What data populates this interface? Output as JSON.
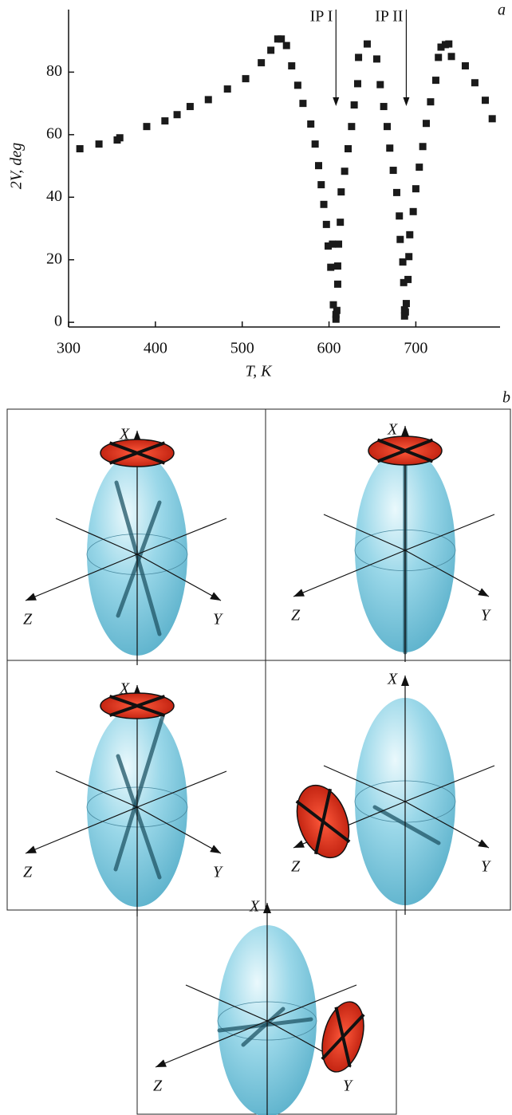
{
  "chart_data": {
    "type": "scatter",
    "panel_label": "a",
    "x_label": "T, K",
    "y_label": "2V, deg",
    "x": [
      313,
      335,
      356,
      359,
      390,
      411,
      425,
      440,
      461,
      483,
      504,
      522,
      533,
      541,
      545,
      551,
      557,
      564,
      570,
      579,
      584,
      588,
      591,
      594,
      597,
      599,
      602,
      604,
      605,
      608,
      608,
      609,
      610,
      610,
      611,
      613,
      614,
      618,
      622,
      626,
      629,
      633,
      634,
      644,
      655,
      659,
      663,
      667,
      670,
      674,
      678,
      681,
      682,
      685,
      686,
      687,
      687,
      688,
      689,
      691,
      692,
      693,
      697,
      700,
      704,
      708,
      712,
      717,
      723,
      726,
      729,
      734,
      738,
      741,
      757,
      768,
      780,
      788
    ],
    "values": [
      55.5,
      57,
      58.3,
      59,
      62.6,
      64.4,
      66.4,
      69,
      71.2,
      74.6,
      77.9,
      83,
      87,
      90.6,
      90.6,
      88.5,
      82,
      75.8,
      70,
      63.4,
      57,
      50.1,
      44,
      37.7,
      31.3,
      24.4,
      17.6,
      25,
      5.6,
      2.5,
      1,
      3.8,
      12.2,
      18,
      25,
      32,
      41.7,
      48.3,
      55.5,
      62.6,
      69.5,
      76.3,
      84.7,
      89,
      84.2,
      76,
      69,
      62.6,
      55.7,
      48.6,
      41.5,
      34,
      26.5,
      19.3,
      12.7,
      4,
      2,
      3.3,
      6,
      13.7,
      21,
      28,
      35.4,
      42.7,
      49.6,
      56.2,
      63.6,
      70.5,
      77.4,
      84.7,
      88,
      88.8,
      89,
      85,
      82,
      76.6,
      71,
      65.1
    ],
    "color": "#1a1a1a",
    "xlim": [
      300,
      797
    ],
    "ylim": [
      -1.5,
      100
    ],
    "xticks": [
      300,
      400,
      500,
      600,
      700
    ],
    "yticks": [
      0,
      20,
      40,
      60,
      80
    ],
    "annotations": [
      {
        "text": "IP I",
        "x": 608
      },
      {
        "text": "IP II",
        "x": 689
      }
    ]
  },
  "diagram": {
    "panel_label": "b",
    "panels": [
      {
        "x": "X",
        "y": "Y",
        "z": "Z"
      },
      {
        "x": "X",
        "y": "Y",
        "z": "Z"
      },
      {
        "x": "X",
        "y": "Y",
        "z": "Z"
      },
      {
        "x": "X",
        "y": "Y",
        "z": "Z"
      },
      {
        "x": "X",
        "y": "Y",
        "z": "Z"
      }
    ]
  }
}
